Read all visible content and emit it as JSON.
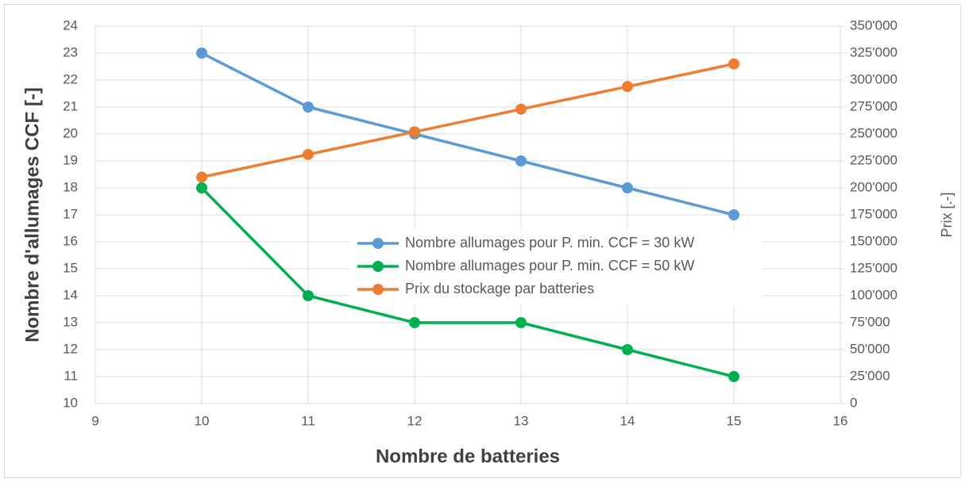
{
  "chart_data": {
    "type": "line",
    "x_label": "Nombre de batteries",
    "y_label": "Nombre d'allumages CCF [-]",
    "y2_label": "Prix [.-]",
    "x": [
      10,
      11,
      12,
      13,
      14,
      15
    ],
    "series": [
      {
        "name": "Nombre allumages pour P. min. CCF = 30 kW",
        "color": "#5b9bd5",
        "values": [
          23,
          21,
          20,
          19,
          18,
          17
        ]
      },
      {
        "name": "Nombre allumages pour P. min. CCF = 50 kW",
        "color": "#00b050",
        "values": [
          18,
          14,
          13,
          13,
          12,
          11
        ]
      },
      {
        "name": "Prix du stockage par batteries",
        "color": "#ed7d31",
        "axis": "y2",
        "values": [
          210000,
          231000,
          252000,
          273000,
          294000,
          315000
        ]
      }
    ],
    "xlim": [
      9,
      16
    ],
    "xticks": [
      9,
      10,
      11,
      12,
      13,
      14,
      15,
      16
    ],
    "ylim": [
      10,
      24
    ],
    "yticks": [
      10,
      11,
      12,
      13,
      14,
      15,
      16,
      17,
      18,
      19,
      20,
      21,
      22,
      23,
      24
    ],
    "y2lim": [
      0,
      350000
    ],
    "y2ticks": [
      0,
      {
        "value": 25000,
        "label": "25'000"
      },
      {
        "value": 50000,
        "label": "50'000"
      },
      {
        "value": 75000,
        "label": "75'000"
      },
      {
        "value": 100000,
        "label": "100'000"
      },
      {
        "value": 125000,
        "label": "125'000"
      },
      {
        "value": 150000,
        "label": "150'000"
      },
      {
        "value": 175000,
        "label": "175'000"
      },
      {
        "value": 200000,
        "label": "200'000"
      },
      {
        "value": 225000,
        "label": "225'000"
      },
      {
        "value": 250000,
        "label": "250'000"
      },
      {
        "value": 275000,
        "label": "275'000"
      },
      {
        "value": 300000,
        "label": "300'000"
      },
      {
        "value": 325000,
        "label": "325'000"
      },
      {
        "value": 350000,
        "label": "350'000"
      }
    ],
    "grid": true,
    "legend": "center"
  }
}
